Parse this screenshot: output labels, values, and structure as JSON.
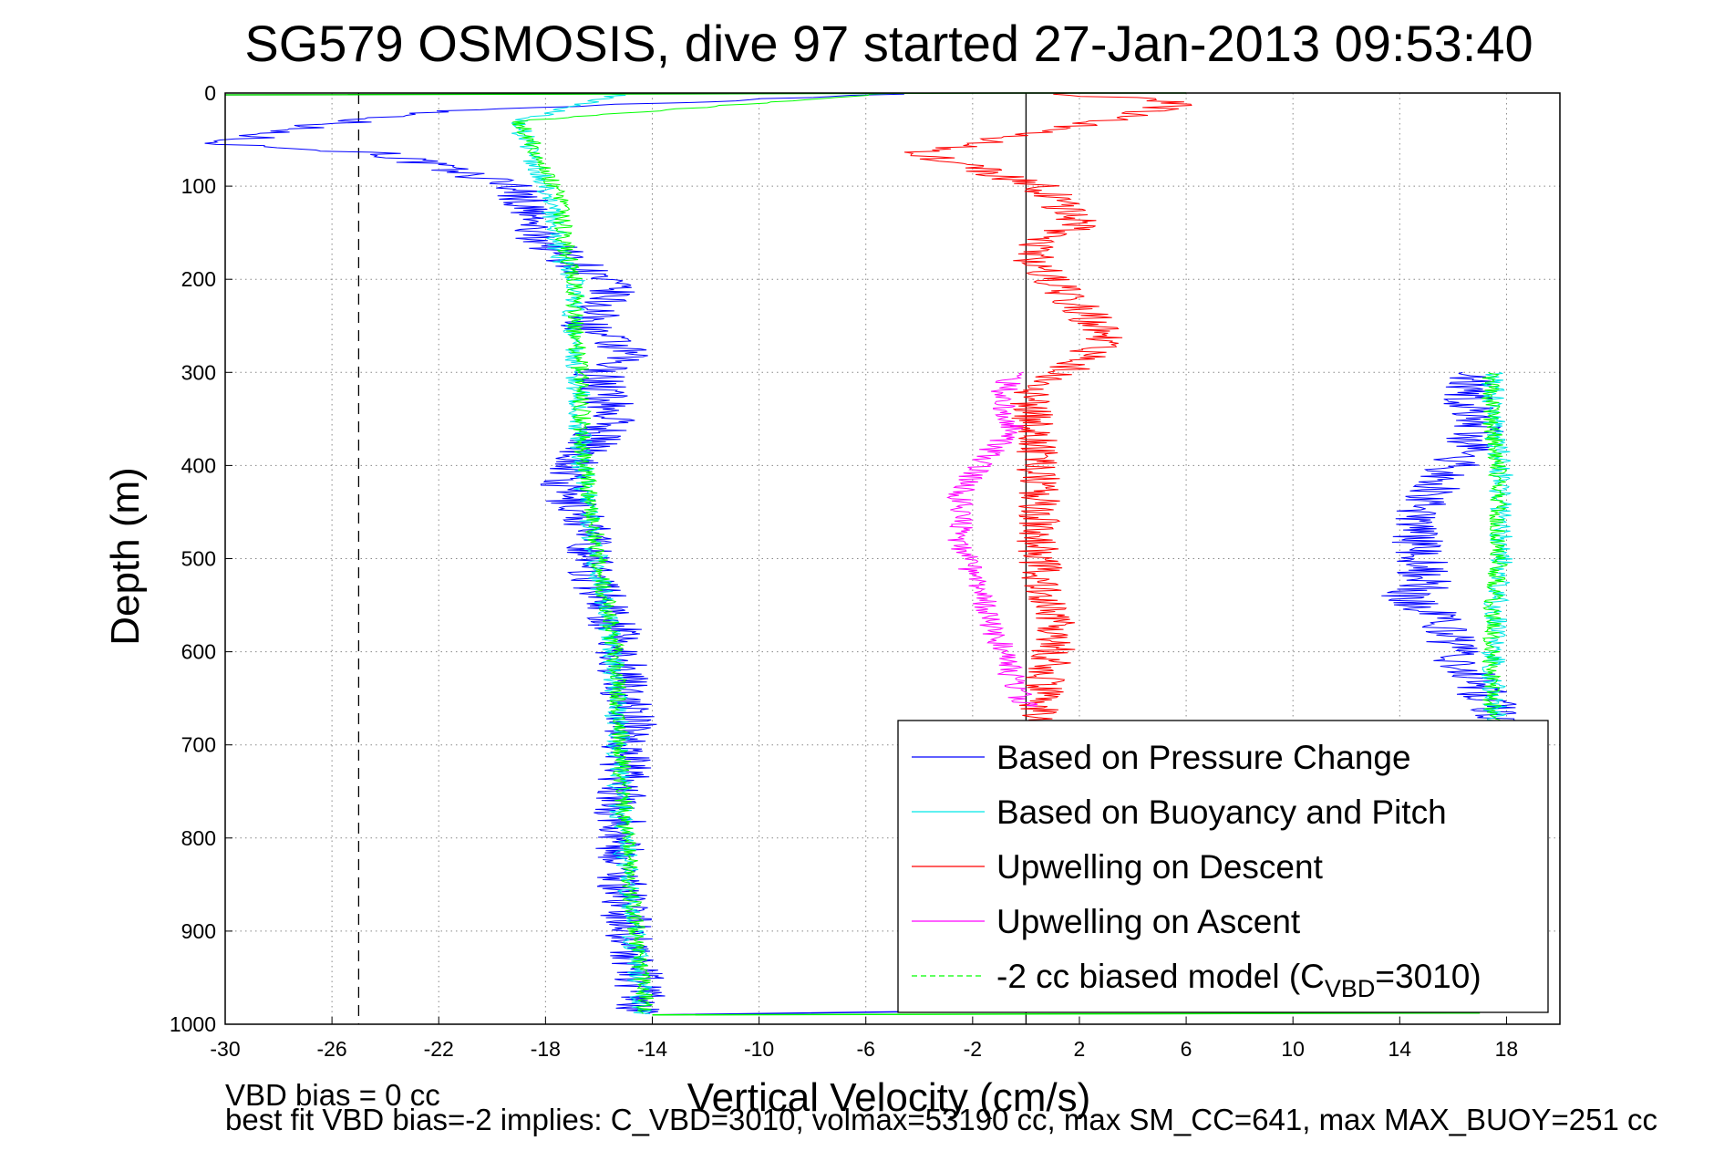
{
  "chart_data": {
    "type": "line",
    "title": "SG579 OSMOSIS, dive 97 started 27-Jan-2013 09:53:40",
    "xlabel": "Vertical Velocity (cm/s)",
    "ylabel": "Depth (m)",
    "xlim": [
      -30,
      20
    ],
    "ylim": [
      0,
      1000
    ],
    "y_reversed": true,
    "grid": true,
    "legend_position": "bottom-right",
    "xticks": [
      -30,
      -26,
      -22,
      -18,
      -14,
      -10,
      -6,
      -2,
      2,
      6,
      10,
      14,
      18
    ],
    "yticks": [
      0,
      100,
      200,
      300,
      400,
      500,
      600,
      700,
      800,
      900,
      1000
    ],
    "xtick_labels": [
      "-30",
      "-26",
      "-22",
      "-18",
      "-14",
      "-10",
      "-6",
      "-2",
      "2",
      "6",
      "10",
      "14",
      "18"
    ],
    "ytick_labels": [
      "0",
      "100",
      "200",
      "300",
      "400",
      "500",
      "600",
      "700",
      "800",
      "900",
      "1000"
    ],
    "reference_lines": [
      {
        "x": 0,
        "style": "solid",
        "color": "#000000"
      },
      {
        "x": -25,
        "style": "dashed",
        "color": "#000000"
      }
    ],
    "series": [
      {
        "name": "Based on Pressure Change",
        "color": "#0000ff",
        "segments": [
          {
            "x": [
              -4,
              -22,
              -28,
              -30,
              -24,
              -22,
              -19,
              -18.5,
              -17,
              -15.5,
              -16.5,
              -15,
              -16,
              -15.5,
              -17.5,
              -16.5,
              -16.2,
              -15.5,
              -15.2,
              -14.8,
              -15.2,
              -15.2,
              -14.9,
              -14.5,
              -14.5
            ],
            "y": [
              0,
              20,
              40,
              55,
              65,
              80,
              100,
              150,
              180,
              210,
              250,
              280,
              300,
              350,
              420,
              460,
              520,
              560,
              600,
              680,
              760,
              820,
              900,
              960,
              990
            ]
          },
          {
            "x": [
              16.5,
              16.5,
              17,
              16,
              14.5,
              14.8,
              15,
              14,
              15.5,
              16,
              17,
              17.5,
              18
            ],
            "y": [
              300,
              330,
              360,
              400,
              450,
              500,
              530,
              540,
              560,
              600,
              640,
              660,
              680
            ]
          }
        ],
        "noise": 1.0
      },
      {
        "name": "Based on Buoyancy and Pitch",
        "color": "#00e6e6",
        "segments": [
          {
            "x": [
              -15,
              -19,
              -18.5,
              -17.8,
              -17.5,
              -17,
              -17,
              -16.8,
              -16.7,
              -16.5,
              -16.2,
              -16,
              -15.7,
              -15.5,
              -15.3,
              -15.2,
              -15,
              -14.8,
              -14.5,
              -14.3
            ],
            "y": [
              0,
              30,
              70,
              110,
              170,
              200,
              250,
              300,
              380,
              430,
              480,
              520,
              560,
              600,
              680,
              760,
              820,
              880,
              950,
              990
            ]
          },
          {
            "x": [
              17.5,
              17.5,
              17.8,
              17.8,
              17.8,
              17.6,
              17.5,
              17.6
            ],
            "y": [
              300,
              350,
              400,
              450,
              500,
              550,
              620,
              680
            ]
          }
        ],
        "noise": 0.45
      },
      {
        "name": "Upwelling on Descent",
        "color": "#ff0000",
        "segments": [
          {
            "x": [
              1,
              6,
              3,
              -1,
              -4,
              -2,
              0.5,
              1,
              2,
              0,
              1,
              2,
              3,
              2,
              0,
              0.5,
              0.5,
              1,
              1,
              0.5,
              0.8
            ],
            "y": [
              0,
              10,
              30,
              50,
              65,
              80,
              100,
              110,
              140,
              170,
              200,
              230,
              260,
              290,
              320,
              400,
              500,
              560,
              600,
              650,
              680
            ]
          }
        ],
        "noise": 0.85
      },
      {
        "name": "Upwelling on Ascent",
        "color": "#ff00ff",
        "segments": [
          {
            "x": [
              -0.5,
              -1,
              -0.5,
              -1.5,
              -2.5,
              -2.5,
              -2,
              -1.5,
              -1.5,
              -1,
              -0.5,
              0
            ],
            "y": [
              300,
              330,
              360,
              390,
              430,
              480,
              520,
              540,
              560,
              590,
              630,
              660
            ]
          }
        ],
        "noise": 0.5
      },
      {
        "name": "-2 cc biased model (C",
        "name_subscript": "VBD",
        "name_suffix": "=3010)",
        "color": "#00ff00",
        "dashed": true,
        "segments": [
          {
            "x": [
              -5,
              -19,
              -18.2,
              -17.5,
              -17.2,
              -16.9,
              -16.9,
              -16.7,
              -16.6,
              -16.4,
              -16.1,
              -15.9,
              -15.6,
              -15.4,
              -15.2,
              -15.1,
              -14.9,
              -14.7,
              -14.4,
              -14.2
            ],
            "y": [
              0,
              30,
              70,
              110,
              170,
              200,
              250,
              300,
              380,
              430,
              480,
              520,
              560,
              600,
              680,
              760,
              820,
              880,
              950,
              990
            ]
          },
          {
            "x": [
              17.4,
              17.4,
              17.7,
              17.7,
              17.7,
              17.5,
              17.4,
              17.5
            ],
            "y": [
              300,
              350,
              400,
              450,
              500,
              550,
              620,
              680
            ]
          }
        ],
        "noise": 0.35
      }
    ],
    "surface_crossings": [
      {
        "color": "#00cc00",
        "x": [
          -30,
          0,
          6
        ],
        "y": [
          2,
          0,
          0
        ]
      },
      {
        "color": "#0000ff",
        "x": [
          -14,
          0,
          16
        ],
        "y": [
          990,
          985,
          988
        ]
      },
      {
        "color": "#00ff00",
        "x": [
          -14,
          16,
          17
        ],
        "y": [
          990,
          988,
          988
        ]
      }
    ]
  },
  "notes": {
    "line1": "VBD bias = 0 cc",
    "line2": "best fit VBD bias=-2 implies: C_VBD=3010, volmax=53190 cc, max SM_CC=641, max MAX_BUOY=251 cc"
  },
  "colors": {
    "axes": "#000000",
    "grid": "#888888",
    "background": "#ffffff"
  }
}
